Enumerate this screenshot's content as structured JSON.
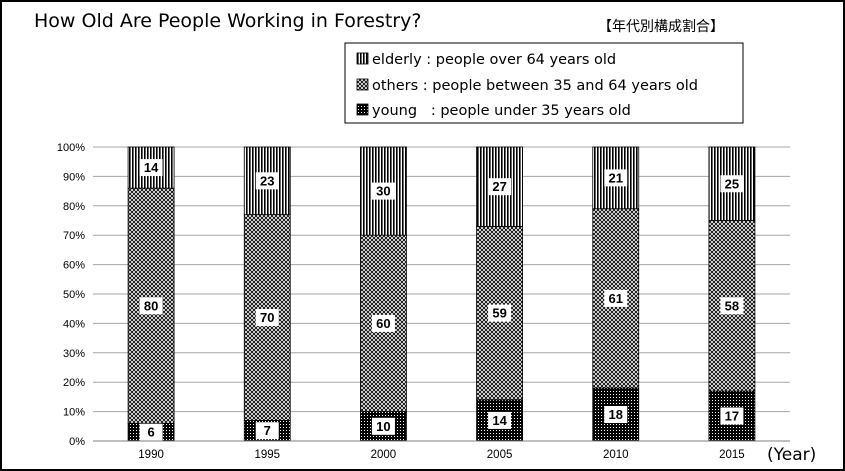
{
  "chart_data": {
    "type": "bar",
    "stacked": true,
    "title": "How Old Are People  Working in Forestry?",
    "subtitle": "【年代別構成割合】",
    "x_unit": "(Year)",
    "categories": [
      "1990",
      "1995",
      "2000",
      "2005",
      "2010",
      "2015"
    ],
    "series": [
      {
        "name": "young  : people under 35 years old",
        "values": [
          6,
          7,
          10,
          14,
          18,
          17
        ],
        "pattern": "black-dotted"
      },
      {
        "name": "others : people between 35 and 64 years old",
        "values": [
          80,
          70,
          60,
          59,
          61,
          58
        ],
        "pattern": "crosshatch"
      },
      {
        "name": "elderly : people over 64 years old",
        "values": [
          14,
          23,
          30,
          27,
          21,
          25
        ],
        "pattern": "vertical-lines"
      }
    ],
    "legend_order": [
      "elderly",
      "others",
      "young"
    ],
    "legend_labels": {
      "elderly": "elderly : people over 64 years old",
      "others": "others : people between 35 and 64 years old",
      "young": "young   : people under 35 years old"
    },
    "y_ticks": [
      "0%",
      "10%",
      "20%",
      "30%",
      "40%",
      "50%",
      "60%",
      "70%",
      "80%",
      "90%",
      "100%"
    ],
    "ylim": [
      0,
      100
    ],
    "grid": true,
    "legend_placement": "top-center",
    "colors": {
      "bar_fill": "#000000",
      "gridline": "#a6a6a6",
      "background": "#ffffff"
    }
  }
}
